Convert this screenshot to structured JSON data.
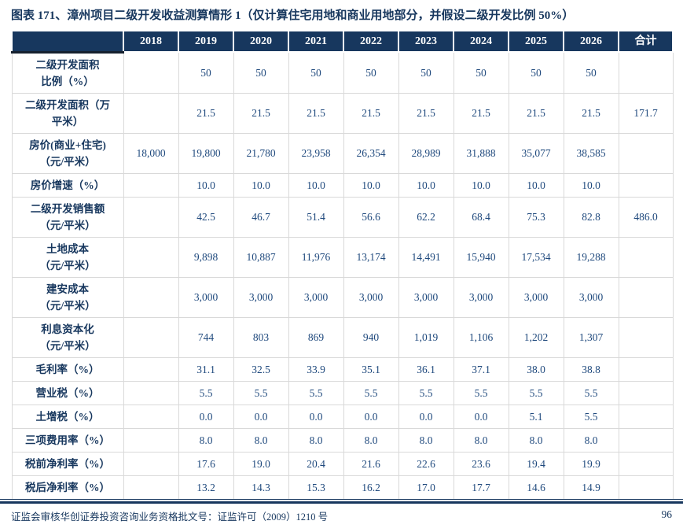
{
  "title": "图表 171、漳州项目二级开发收益测算情形 1（仅计算住宅用地和商业用地部分，并假设二级开发比例 50%）",
  "colors": {
    "header_bg": "#17375E",
    "header_text": "#FFFFFF",
    "cell_text": "#1F497D",
    "label_text": "#17375E",
    "cell_border": "#D9D9D9",
    "accent": "#17375E"
  },
  "table": {
    "columns": [
      "",
      "2018",
      "2019",
      "2020",
      "2021",
      "2022",
      "2023",
      "2024",
      "2025",
      "2026",
      "合计"
    ],
    "rows": [
      {
        "label_lines": [
          "二级开发面积",
          "比例（%）"
        ],
        "values": [
          "",
          "50",
          "50",
          "50",
          "50",
          "50",
          "50",
          "50",
          "50",
          ""
        ]
      },
      {
        "label_lines": [
          "二级开发面积（万",
          "平米）"
        ],
        "values": [
          "",
          "21.5",
          "21.5",
          "21.5",
          "21.5",
          "21.5",
          "21.5",
          "21.5",
          "21.5",
          "171.7"
        ]
      },
      {
        "label_lines": [
          "房价(商业+住宅)",
          "（元/平米）"
        ],
        "values": [
          "18,000",
          "19,800",
          "21,780",
          "23,958",
          "26,354",
          "28,989",
          "31,888",
          "35,077",
          "38,585",
          ""
        ]
      },
      {
        "label_lines": [
          "房价增速（%）"
        ],
        "values": [
          "",
          "10.0",
          "10.0",
          "10.0",
          "10.0",
          "10.0",
          "10.0",
          "10.0",
          "10.0",
          ""
        ]
      },
      {
        "label_lines": [
          "二级开发销售额",
          "（元/平米）"
        ],
        "values": [
          "",
          "42.5",
          "46.7",
          "51.4",
          "56.6",
          "62.2",
          "68.4",
          "75.3",
          "82.8",
          "486.0"
        ]
      },
      {
        "label_lines": [
          "土地成本",
          "（元/平米）"
        ],
        "values": [
          "",
          "9,898",
          "10,887",
          "11,976",
          "13,174",
          "14,491",
          "15,940",
          "17,534",
          "19,288",
          ""
        ]
      },
      {
        "label_lines": [
          "建安成本",
          "（元/平米）"
        ],
        "values": [
          "",
          "3,000",
          "3,000",
          "3,000",
          "3,000",
          "3,000",
          "3,000",
          "3,000",
          "3,000",
          ""
        ]
      },
      {
        "label_lines": [
          "利息资本化",
          "（元/平米）"
        ],
        "values": [
          "",
          "744",
          "803",
          "869",
          "940",
          "1,019",
          "1,106",
          "1,202",
          "1,307",
          ""
        ]
      },
      {
        "label_lines": [
          "毛利率（%）"
        ],
        "values": [
          "",
          "31.1",
          "32.5",
          "33.9",
          "35.1",
          "36.1",
          "37.1",
          "38.0",
          "38.8",
          ""
        ]
      },
      {
        "label_lines": [
          "营业税（%）"
        ],
        "values": [
          "",
          "5.5",
          "5.5",
          "5.5",
          "5.5",
          "5.5",
          "5.5",
          "5.5",
          "5.5",
          ""
        ]
      },
      {
        "label_lines": [
          "土增税（%）"
        ],
        "values": [
          "",
          "0.0",
          "0.0",
          "0.0",
          "0.0",
          "0.0",
          "0.0",
          "5.1",
          "5.5",
          ""
        ]
      },
      {
        "label_lines": [
          "三项费用率（%）"
        ],
        "values": [
          "",
          "8.0",
          "8.0",
          "8.0",
          "8.0",
          "8.0",
          "8.0",
          "8.0",
          "8.0",
          ""
        ]
      },
      {
        "label_lines": [
          "税前净利率（%）"
        ],
        "values": [
          "",
          "17.6",
          "19.0",
          "20.4",
          "21.6",
          "22.6",
          "23.6",
          "19.4",
          "19.9",
          ""
        ]
      },
      {
        "label_lines": [
          "税后净利率（%）"
        ],
        "values": [
          "",
          "13.2",
          "14.3",
          "15.3",
          "16.2",
          "17.0",
          "17.7",
          "14.6",
          "14.9",
          ""
        ]
      }
    ]
  },
  "footer": {
    "text": "证监会审核华创证券投资咨询业务资格批文号：证监许可（2009）1210 号",
    "page": "96"
  }
}
